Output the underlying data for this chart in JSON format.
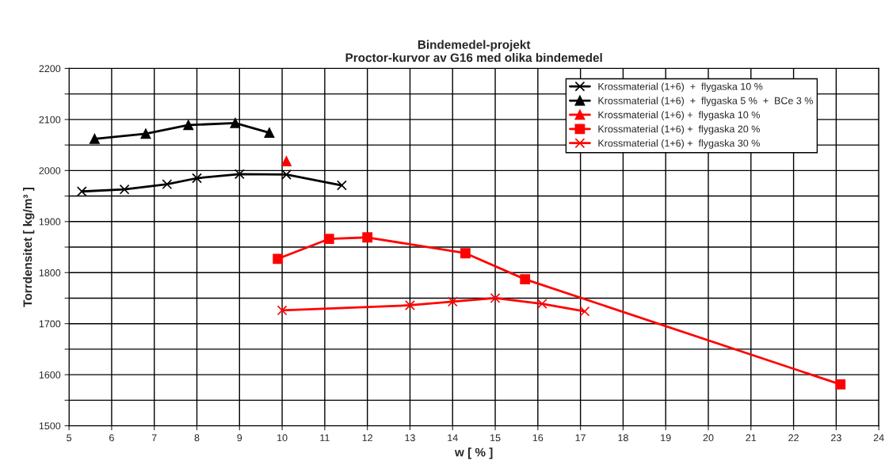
{
  "chart_data": {
    "type": "line",
    "title": "Bindemedel-projekt\nProctor-kurvor av G16 med olika bindemedel",
    "xlabel": "w [ % ]",
    "ylabel": "Torrdensitet [ kg/m³ ]",
    "xlim": [
      5,
      24
    ],
    "xticks": [
      5,
      6,
      7,
      8,
      9,
      10,
      11,
      12,
      13,
      14,
      15,
      16,
      17,
      18,
      19,
      20,
      21,
      22,
      23,
      24
    ],
    "ylim": [
      1500,
      2200
    ],
    "yticks": [
      1500,
      {
        "value": 1550,
        "label": null
      },
      1600,
      {
        "value": 1650,
        "label": null
      },
      1700,
      {
        "value": 1750,
        "label": null
      },
      1800,
      {
        "value": 1850,
        "label": null
      },
      1900,
      {
        "value": 1950,
        "label": null
      },
      2000,
      {
        "value": 2050,
        "label": null
      },
      2100,
      {
        "value": 2150,
        "label": null
      },
      2200
    ],
    "grid": true,
    "legend": "top right",
    "line_style": "solid",
    "series": [
      {
        "name": "Krossmaterial (1+6)  +  flygaska 10 %",
        "color": "#000000",
        "marker": "cross",
        "x": [
          5.3,
          6.3,
          7.3,
          8.0,
          9.0,
          10.1,
          11.4
        ],
        "values": [
          1959,
          1963,
          1973,
          1985,
          1993,
          1992,
          1971
        ]
      },
      {
        "name": "Krossmaterial (1+6)  +  flygaska 5 %  +  BCe 3 %",
        "color": "#000000",
        "marker": "triangle",
        "x": [
          5.6,
          6.8,
          7.8,
          8.9,
          9.7
        ],
        "values": [
          2062,
          2072,
          2089,
          2093,
          2074
        ]
      },
      {
        "name": "Krossmaterial (1+6) +  flygaska 10 %",
        "color": "#ff0000",
        "marker": "triangle",
        "x": [
          10.1
        ],
        "values": [
          2018
        ]
      },
      {
        "name": "Krossmaterial (1+6) +  flygaska 20 %",
        "color": "#ff0000",
        "marker": "square",
        "x": [
          9.9,
          11.1,
          12.0,
          14.3,
          15.7,
          23.1
        ],
        "values": [
          1827,
          1866,
          1869,
          1838,
          1787,
          1581
        ]
      },
      {
        "name": "Krossmaterial (1+6) +  flygaska 30 %",
        "color": "#ff0000",
        "marker": "cross",
        "x": [
          10.0,
          13.0,
          14.0,
          15.0,
          16.1,
          17.1
        ],
        "values": [
          1726,
          1736,
          1743,
          1750,
          1739,
          1724
        ]
      }
    ]
  }
}
